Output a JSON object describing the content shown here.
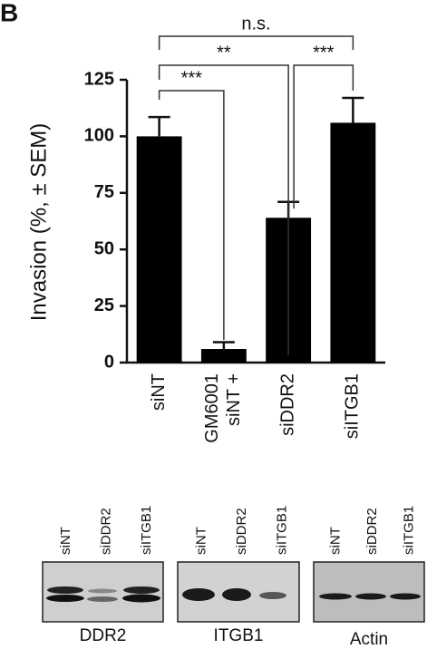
{
  "panel_label": "B",
  "chart_data": {
    "type": "bar",
    "y_label": "Invasion (%, ± SEM)",
    "categories": [
      "siNT",
      "siNT + GM6001",
      "siDDR2",
      "siITGB1"
    ],
    "values": [
      100,
      6,
      64,
      106
    ],
    "errors": [
      8.5,
      3,
      7,
      11
    ],
    "color": "#000000",
    "ylim": [
      0,
      125
    ],
    "yticks": [
      0,
      25,
      50,
      75,
      100,
      125
    ],
    "annotations": [
      "***",
      "**",
      "***",
      "n.s."
    ]
  },
  "blots": [
    {
      "label": "DDR2",
      "lanes": [
        "siNT",
        "siDDR2",
        "siITGB1"
      ]
    },
    {
      "label": "ITGB1",
      "lanes": [
        "siNT",
        "siDDR2",
        "siITGB1"
      ]
    },
    {
      "label": "Actin",
      "lanes": [
        "siNT",
        "siDDR2",
        "siITGB1"
      ]
    }
  ]
}
